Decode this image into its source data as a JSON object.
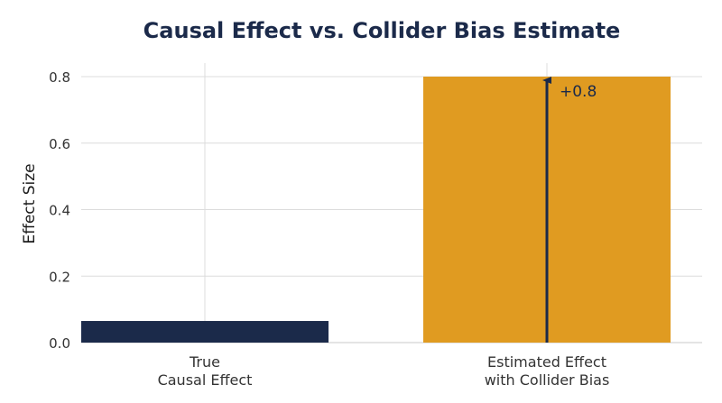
{
  "chart_data": {
    "type": "bar",
    "title": "Causal Effect vs. Collider Bias Estimate",
    "xlabel": "",
    "ylabel": "Effect Size",
    "ylim": [
      0,
      0.8
    ],
    "yticks": [
      0.0,
      0.2,
      0.4,
      0.6,
      0.8
    ],
    "ytick_labels": [
      "0.0",
      "0.2",
      "0.4",
      "0.6",
      "0.8"
    ],
    "grid": true,
    "categories": [
      [
        "True",
        "Causal Effect"
      ],
      [
        "Estimated Effect",
        "with Collider Bias"
      ]
    ],
    "values": [
      0.065,
      0.8
    ],
    "colors": [
      "#1b2a4a",
      "#e09b21"
    ],
    "label_colors": [
      "#1a1a1a",
      "#e09b21"
    ],
    "annotation": {
      "text": "+0.8",
      "category_index": 1,
      "from": 0.0,
      "to": 0.8,
      "color": "#1b2a4a"
    }
  }
}
